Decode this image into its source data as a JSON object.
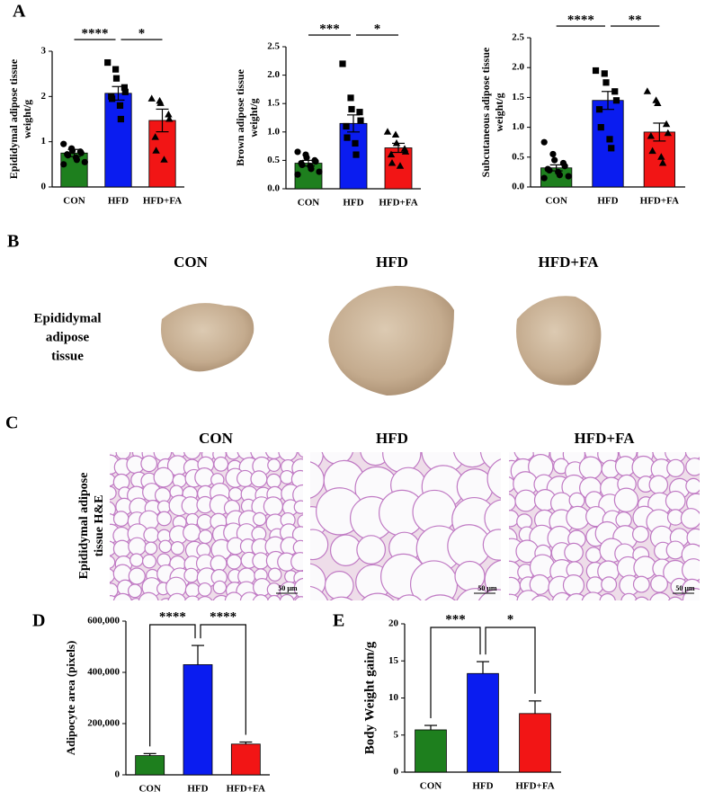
{
  "panel_labels": [
    "A",
    "B",
    "C",
    "D",
    "E"
  ],
  "chart_data": [
    {
      "type": "bar",
      "ylabel": [
        "Epididymal adipose tissue",
        "weight/g"
      ],
      "categories": [
        "CON",
        "HFD",
        "HFD+FA"
      ],
      "values": [
        0.75,
        2.07,
        1.47
      ],
      "errors": [
        0.08,
        0.15,
        0.25
      ],
      "points": [
        [
          0.95,
          0.85,
          0.8,
          0.78,
          0.75,
          0.72,
          0.7,
          0.65,
          0.6,
          0.55,
          0.5
        ],
        [
          2.75,
          2.6,
          2.4,
          2.2,
          2.1,
          2.0,
          1.95,
          1.8,
          1.5
        ],
        [
          1.95,
          1.9,
          1.85,
          1.6,
          1.5,
          1.1,
          0.8,
          0.6
        ]
      ],
      "colors": [
        "#1e7f1e",
        "#0a1cf0",
        "#f21515"
      ],
      "ylim": [
        0,
        3
      ],
      "yticks": [
        0,
        1,
        2,
        3
      ],
      "significance": [
        "****",
        "*"
      ]
    },
    {
      "type": "bar",
      "ylabel": [
        "Brown adipose tissue",
        "weight/g"
      ],
      "categories": [
        "CON",
        "HFD",
        "HFD+FA"
      ],
      "values": [
        0.45,
        1.15,
        0.72
      ],
      "errors": [
        0.05,
        0.15,
        0.08
      ],
      "points": [
        [
          0.65,
          0.6,
          0.55,
          0.5,
          0.48,
          0.45,
          0.42,
          0.4,
          0.35,
          0.3,
          0.25
        ],
        [
          2.2,
          1.6,
          1.4,
          1.35,
          1.2,
          1.1,
          0.9,
          0.8,
          0.6
        ],
        [
          1.0,
          0.95,
          0.8,
          0.7,
          0.65,
          0.6,
          0.45,
          0.4
        ]
      ],
      "colors": [
        "#1e7f1e",
        "#0a1cf0",
        "#f21515"
      ],
      "ylim": [
        0,
        2.5
      ],
      "yticks": [
        {
          "value": 0,
          "label": "0.0"
        },
        0.5,
        {
          "value": 1,
          "label": "1.0"
        },
        1.5,
        {
          "value": 2,
          "label": "2.0"
        },
        2.5
      ],
      "significance": [
        "***",
        "*"
      ]
    },
    {
      "type": "bar",
      "ylabel": [
        "Subcutaneous adipose tissue",
        "weight/g"
      ],
      "categories": [
        "CON",
        "HFD",
        "HFD+FA"
      ],
      "values": [
        0.32,
        1.45,
        0.92
      ],
      "errors": [
        0.05,
        0.15,
        0.15
      ],
      "points": [
        [
          0.75,
          0.55,
          0.45,
          0.4,
          0.35,
          0.3,
          0.28,
          0.25,
          0.2,
          0.18,
          0.15
        ],
        [
          1.95,
          1.9,
          1.75,
          1.6,
          1.45,
          1.3,
          1.0,
          0.8,
          0.65
        ],
        [
          1.6,
          1.45,
          1.4,
          1.05,
          0.9,
          0.85,
          0.6,
          0.5,
          0.4
        ]
      ],
      "colors": [
        "#1e7f1e",
        "#0a1cf0",
        "#f21515"
      ],
      "ylim": [
        0,
        2.5
      ],
      "yticks": [
        {
          "value": 0,
          "label": "0.0"
        },
        0.5,
        {
          "value": 1,
          "label": "1.0"
        },
        1.5,
        {
          "value": 2,
          "label": "2.0"
        },
        2.5
      ],
      "significance": [
        "****",
        "**"
      ]
    },
    {
      "type": "bar",
      "ylabel": [
        "Adipocyte area (pixels)"
      ],
      "categories": [
        "CON",
        "HFD",
        "HFD+FA"
      ],
      "values": [
        75000,
        430000,
        120000
      ],
      "errors": [
        8000,
        75000,
        8000
      ],
      "colors": [
        "#1e7f1e",
        "#0a1cf0",
        "#f21515"
      ],
      "ylim": [
        0,
        600000
      ],
      "yticks": [
        0,
        {
          "value": 200000,
          "label": "200,000"
        },
        {
          "value": 400000,
          "label": "400,000"
        },
        {
          "value": 600000,
          "label": "600,000"
        }
      ],
      "significance": [
        "****",
        "****"
      ]
    },
    {
      "type": "bar",
      "ylabel": [
        "Body Weight gain/g"
      ],
      "categories": [
        "CON",
        "HFD",
        "HFD+FA"
      ],
      "values": [
        5.7,
        13.3,
        7.9
      ],
      "errors": [
        0.6,
        1.6,
        1.7
      ],
      "colors": [
        "#1e7f1e",
        "#0a1cf0",
        "#f21515"
      ],
      "ylim": [
        0,
        20
      ],
      "yticks": [
        0,
        5,
        10,
        15,
        20
      ],
      "significance": [
        "***",
        "*"
      ]
    }
  ],
  "photos": {
    "columns": [
      "CON",
      "HFD",
      "HFD+FA"
    ],
    "row_label": [
      "Epididymal",
      "adipose",
      "tissue"
    ]
  },
  "histology": {
    "columns": [
      "CON",
      "HFD",
      "HFD+FA"
    ],
    "row_label": [
      "Epididymal adipose",
      "tissue H&E"
    ],
    "scale_bars": [
      "50 μm",
      "50 μm",
      "50 μm"
    ]
  }
}
